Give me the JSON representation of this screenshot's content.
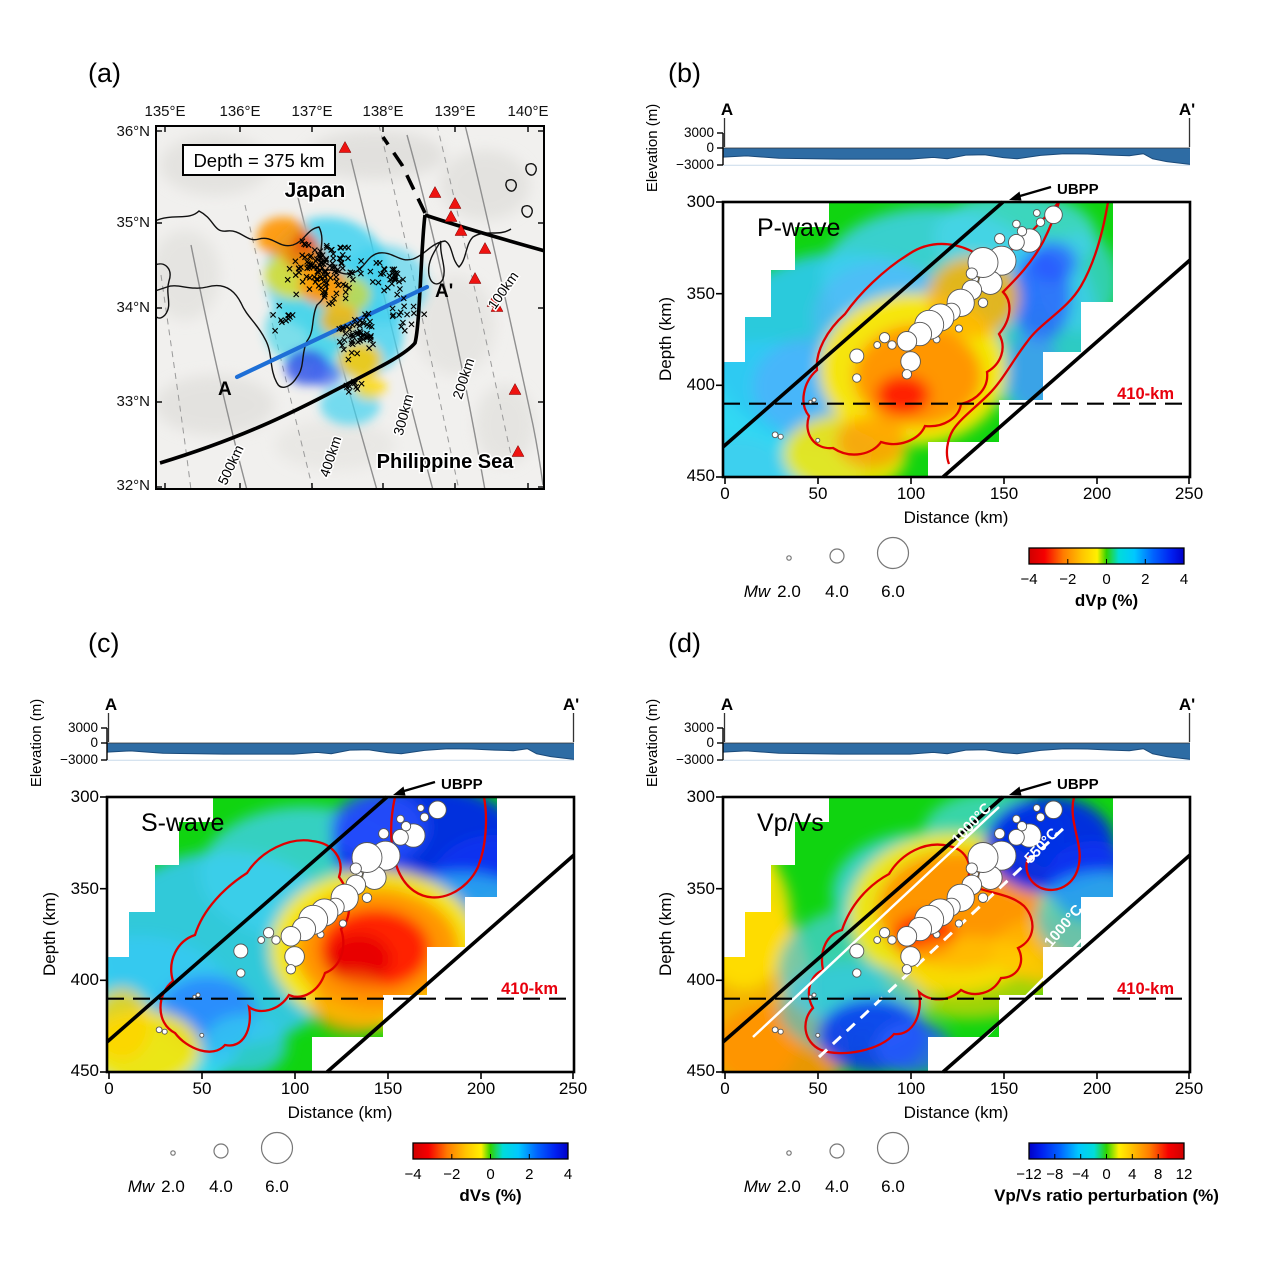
{
  "map": {
    "tag": "(a)",
    "depth_box": "Depth = 375 km",
    "country_label": "Japan",
    "sea_label": "Philippine Sea",
    "profile_start": "A",
    "profile_end": "A'",
    "lon_labels": [
      "135°E",
      "136°E",
      "137°E",
      "138°E",
      "139°E",
      "140°E"
    ],
    "lat_labels": [
      "36°N",
      "35°N",
      "34°N",
      "33°N",
      "32°N"
    ],
    "contour_labels": [
      "500km",
      "400km",
      "300km",
      "200km",
      "100km"
    ],
    "volcanoes": [
      [
        190,
        23
      ],
      [
        280,
        68
      ],
      [
        300,
        79
      ],
      [
        306,
        106
      ],
      [
        330,
        124
      ],
      [
        320,
        154
      ],
      [
        338,
        177
      ],
      [
        296,
        92
      ],
      [
        342,
        182
      ],
      [
        360,
        265
      ],
      [
        363,
        327
      ]
    ],
    "epicenter_clusters": [
      [
        170,
        145,
        44,
        38,
        115
      ],
      [
        205,
        210,
        30,
        28,
        55
      ],
      [
        252,
        192,
        24,
        26,
        16
      ],
      [
        128,
        192,
        20,
        16,
        12
      ],
      [
        232,
        152,
        28,
        22,
        28
      ],
      [
        195,
        262,
        20,
        14,
        10
      ]
    ]
  },
  "section_common": {
    "elev_label": "Elevation (m)",
    "elev_ticks": [
      "3000",
      "0",
      "−3000"
    ],
    "profile_start": "A",
    "profile_end": "A'",
    "ubpp": "UBPP",
    "depth_label": "Depth (km)",
    "depth_ticks": [
      "300",
      "350",
      "400",
      "450"
    ],
    "dist_label": "Distance (km)",
    "dist_ticks": [
      "0",
      "50",
      "100",
      "150",
      "200",
      "250"
    ],
    "disc_label": "410-km",
    "mw_label": "Mw",
    "mw_sizes": [
      "2.0",
      "4.0",
      "6.0"
    ]
  },
  "sections": {
    "b": {
      "tag": "(b)",
      "wave": "P-wave",
      "cbar_label": "dVp (%)",
      "cbar_ticks": [
        "−4",
        "−2",
        "0",
        "2",
        "4"
      ]
    },
    "c": {
      "tag": "(c)",
      "wave": "S-wave",
      "cbar_label": "dVs (%)",
      "cbar_ticks": [
        "−4",
        "−2",
        "0",
        "2",
        "4"
      ]
    },
    "d": {
      "tag": "(d)",
      "wave": "Vp/Vs",
      "cbar_label": "Vp/Vs ratio perturbation (%)",
      "cbar_ticks": [
        "−12",
        "−8",
        "−4",
        "0",
        "4",
        "8",
        "12"
      ],
      "temp_labels": [
        "1000°C",
        "550°C",
        "1000°C"
      ]
    }
  },
  "earthquakes_section": {
    "units": [
      "distance_km",
      "depth_km",
      "Mw"
    ],
    "mw_legend": [
      2.0,
      4.0,
      6.0
    ],
    "events": [
      [
        177,
        307,
        4.6
      ],
      [
        170,
        311,
        3.2
      ],
      [
        168,
        306,
        2.8
      ],
      [
        164,
        321,
        5.2
      ],
      [
        157,
        322,
        4.4
      ],
      [
        157,
        312,
        3.0
      ],
      [
        160,
        316,
        3.4
      ],
      [
        152,
        328,
        3.0
      ],
      [
        149,
        332,
        5.8
      ],
      [
        148,
        320,
        3.6
      ],
      [
        143,
        344,
        5.2
      ],
      [
        139,
        333,
        5.9
      ],
      [
        139,
        355,
        3.4
      ],
      [
        135,
        342,
        2.6
      ],
      [
        133,
        348,
        4.8
      ],
      [
        133,
        339,
        3.8
      ],
      [
        127,
        355,
        5.6
      ],
      [
        126,
        369,
        2.9
      ],
      [
        122,
        360,
        4.6
      ],
      [
        116,
        363,
        5.6
      ],
      [
        114,
        375,
        2.8
      ],
      [
        110,
        367,
        5.8
      ],
      [
        105,
        372,
        5.2
      ],
      [
        100,
        387,
        4.8
      ],
      [
        98,
        376,
        4.8
      ],
      [
        98,
        394,
        3.4
      ],
      [
        90,
        378,
        3.2
      ],
      [
        86,
        374,
        3.6
      ],
      [
        82,
        378,
        2.8
      ],
      [
        71,
        384,
        4.2
      ],
      [
        71,
        396,
        3.2
      ],
      [
        50,
        430,
        2.2
      ],
      [
        48,
        408,
        2.2
      ],
      [
        46,
        409,
        2.0
      ],
      [
        30,
        428,
        2.4
      ],
      [
        27,
        427,
        2.6
      ]
    ]
  },
  "chart_data": [
    {
      "type": "heatmap",
      "panel": "(a)",
      "title": "Depth = 375 km",
      "description": "Map-view tomography slice at 375 km depth over central Japan and the Philippine Sea",
      "x_ticks": [
        "135°E",
        "136°E",
        "137°E",
        "138°E",
        "139°E",
        "140°E"
      ],
      "y_ticks": [
        "36°N",
        "35°N",
        "34°N",
        "33°N",
        "32°N"
      ],
      "place_labels": [
        "Japan",
        "Philippine Sea"
      ],
      "slab_isodepth_contours_km": [
        100,
        200,
        300,
        400,
        500
      ],
      "cross_section_line": {
        "from": "A",
        "to": "A'",
        "trend": "SW–NE blue line near 33.3–34.3°N"
      },
      "markers": {
        "red_triangles": "volcanoes (11, mostly NE quadrant)",
        "black_crosses": "deep earthquake epicenters clustered 136°–138°E, 33°–35°N"
      },
      "anomaly_patches": [
        "cyan fast halo around cluster",
        "orange–red slow patches in cluster core",
        "blue fast patch south of 34°N",
        "yellow-orange patch near 33°N"
      ]
    },
    {
      "type": "heatmap",
      "panel": "(b)",
      "title": "P-wave",
      "xlabel": "Distance (km)",
      "ylabel": "Depth (km)",
      "xlim": [
        0,
        252
      ],
      "ylim": [
        450,
        300
      ],
      "x_ticks": [
        0,
        50,
        100,
        150,
        200,
        250
      ],
      "y_ticks": [
        300,
        350,
        400,
        450
      ],
      "colorbar": {
        "label": "dVp (%)",
        "ticks": [
          -4,
          -2,
          0,
          2,
          4
        ],
        "orientation": "red = slow (−), blue = fast (+)"
      },
      "reference_lines": [
        {
          "name": "410-km discontinuity",
          "depth_km": 410,
          "style": "black dashed horizontal"
        },
        {
          "name": "slab upper boundary (UBPP arrow at ~150 km distance, top)",
          "style": "black solid diagonal"
        },
        {
          "name": "slab lower boundary",
          "style": "black solid diagonal lower-right"
        }
      ],
      "anomalies": [
        {
          "kind": "low velocity (red/orange, dVp ≈ −2 to −4%)",
          "extent": "along slab, 50–170 km distance, 330–440 km depth, red core near 105 km / 398 km"
        },
        {
          "kind": "high velocity (cyan/blue, dVp ≈ +1 to +3%)",
          "extent": "broad band above slab (upper-left); blue band 160–200 km, 330–420 km"
        }
      ],
      "red_contour": "outline enclosing the low-velocity body",
      "earthquakes": "white circles scaled by Mw, see earthquakes_section",
      "elevation_profile": {
        "ylabel": "Elevation (m)",
        "yticks_m": [
          3000,
          0,
          -3000
        ],
        "description": "sea floor along A–A' between about −1000 and −2900 m"
      }
    },
    {
      "type": "heatmap",
      "panel": "(c)",
      "title": "S-wave",
      "xlabel": "Distance (km)",
      "ylabel": "Depth (km)",
      "xlim": [
        0,
        252
      ],
      "ylim": [
        450,
        300
      ],
      "x_ticks": [
        0,
        50,
        100,
        150,
        200,
        250
      ],
      "y_ticks": [
        300,
        350,
        400,
        450
      ],
      "colorbar": {
        "label": "dVs (%)",
        "ticks": [
          -4,
          -2,
          0,
          2,
          4
        ],
        "orientation": "red = slow (−), blue = fast (+)"
      },
      "reference_lines": [
        {
          "name": "410-km discontinuity",
          "depth_km": 410,
          "style": "black dashed horizontal"
        },
        {
          "name": "slab upper boundary (UBPP)",
          "style": "black solid diagonal"
        },
        {
          "name": "slab lower boundary",
          "style": "black solid diagonal lower-right"
        }
      ],
      "anomalies": [
        {
          "kind": "strong low velocity (red, dVs ≈ −3 to −4%)",
          "extent": "100–165 km distance, 340–400 km depth"
        },
        {
          "kind": "strong high velocity (deep blue, dVs ≈ +3 to +4%)",
          "extent": "cold slab core 155–220 km distance, 300–360 km depth"
        },
        {
          "kind": "yellow low-velocity patch",
          "extent": "bottom-left corner, 0–30 km, 420–450 km"
        }
      ],
      "red_contour": "outline enclosing the low-velocity body, dipping below 410 km near 60–110 km distance",
      "earthquakes": "white circles scaled by Mw, see earthquakes_section",
      "elevation_profile": {
        "ylabel": "Elevation (m)",
        "yticks_m": [
          3000,
          0,
          -3000
        ],
        "description": "same bathymetry profile A–A'"
      }
    },
    {
      "type": "heatmap",
      "panel": "(d)",
      "title": "Vp/Vs",
      "xlabel": "Distance (km)",
      "ylabel": "Depth (km)",
      "xlim": [
        0,
        252
      ],
      "ylim": [
        450,
        300
      ],
      "x_ticks": [
        0,
        50,
        100,
        150,
        200,
        250
      ],
      "y_ticks": [
        300,
        350,
        400,
        450
      ],
      "colorbar": {
        "label": "Vp/Vs ratio perturbation (%)",
        "ticks": [
          -12,
          -8,
          -4,
          0,
          4,
          8,
          12
        ],
        "orientation": "blue = low (−), red = high (+)"
      },
      "isotherms": [
        {
          "label": "1000°C",
          "style": "solid white, along slab upper boundary"
        },
        {
          "label": "550°C",
          "style": "dashed white, slab interior"
        },
        {
          "label": "1000°C",
          "style": "solid white, slab lower part"
        }
      ],
      "reference_lines": [
        {
          "name": "410-km discontinuity",
          "depth_km": 410,
          "style": "black dashed horizontal"
        },
        {
          "name": "slab upper boundary (UBPP)",
          "style": "black solid diagonal"
        },
        {
          "name": "slab lower boundary",
          "style": "black solid diagonal lower-right"
        }
      ],
      "anomalies": [
        {
          "kind": "high Vp/Vs (red/orange, up to +8 to +12%)",
          "extent": "center 90–180 km distance, 330–400 km depth and broad band at 0–40 km distance"
        },
        {
          "kind": "low Vp/Vs (deep blue, −8 to −12%)",
          "extent": "cold slab core 160–220 km / 300–360 km and patch 75–110 km / 405–450 km"
        }
      ],
      "red_contour": "same low-velocity body outline as (b)/(c)",
      "earthquakes": "white circles scaled by Mw, see earthquakes_section",
      "elevation_profile": {
        "ylabel": "Elevation (m)",
        "yticks_m": [
          3000,
          0,
          -3000
        ],
        "description": "same bathymetry profile A–A'"
      }
    }
  ]
}
